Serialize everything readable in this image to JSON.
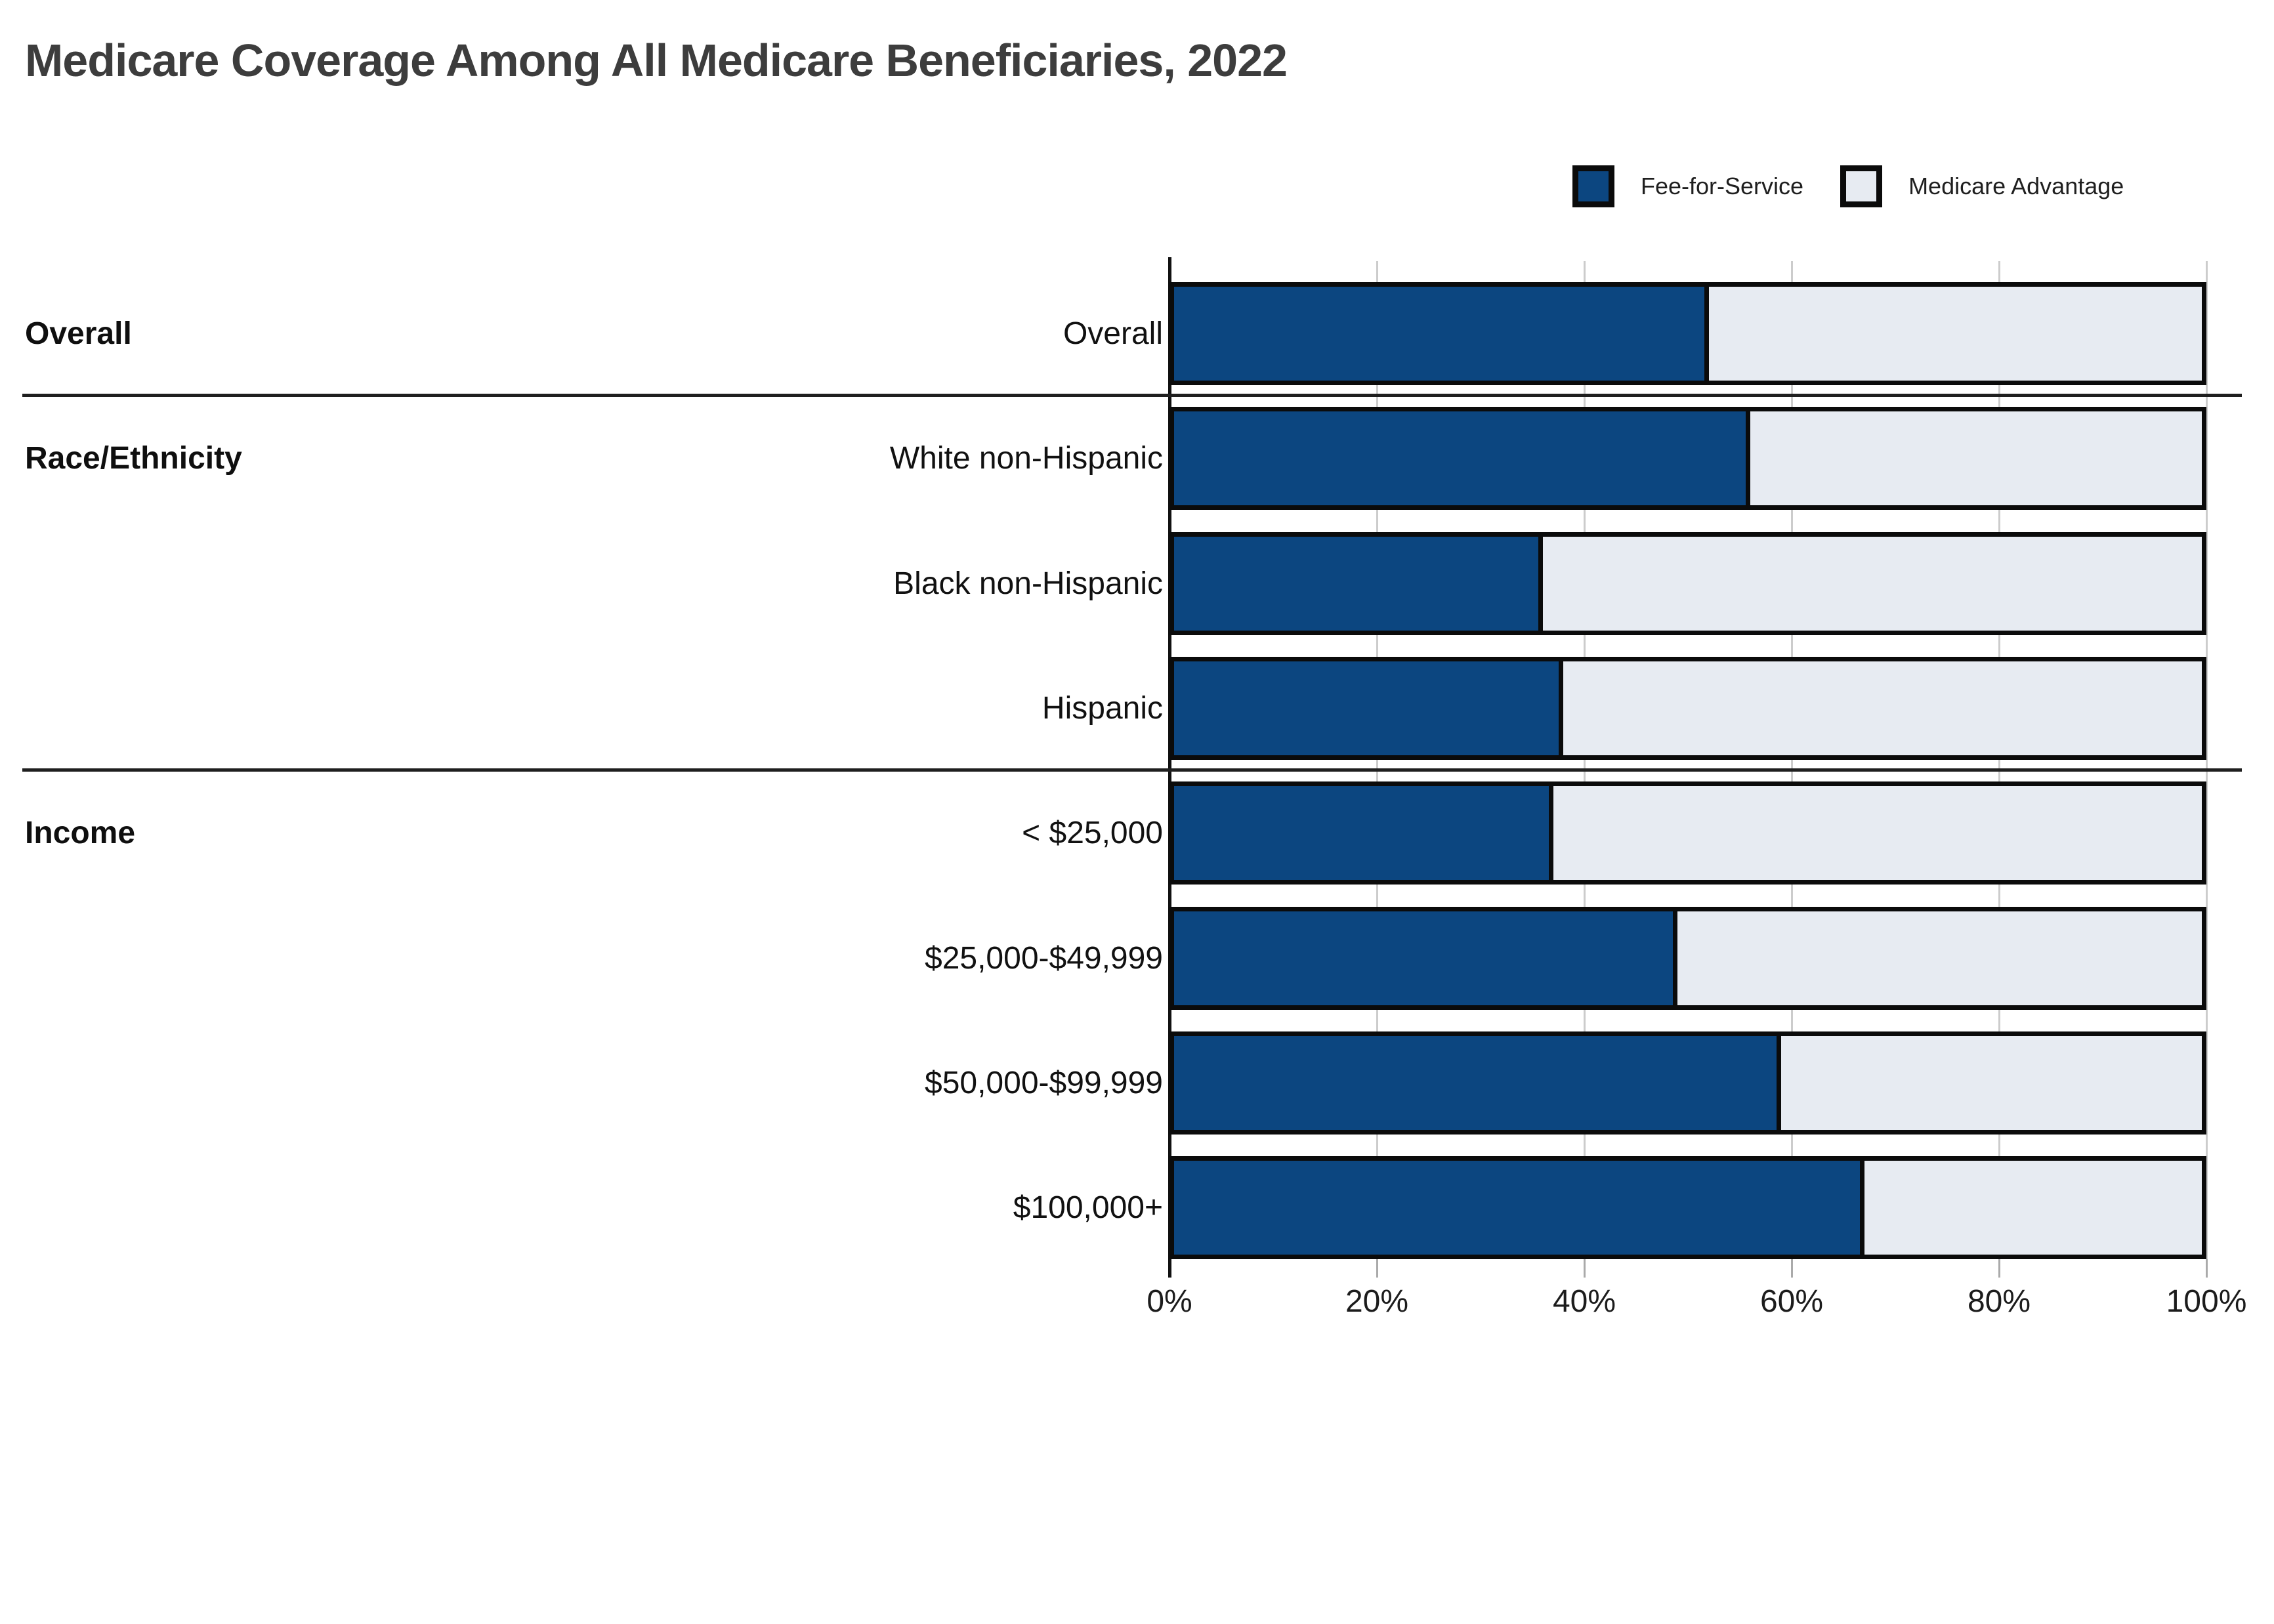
{
  "title": "Medicare Coverage Among All Medicare Beneficiaries, 2022",
  "legend": {
    "items": [
      {
        "label": "Fee-for-Service",
        "color": "#0c4680"
      },
      {
        "label": "Medicare Advantage",
        "color": "#e7ebf2"
      }
    ]
  },
  "axis": {
    "ticks": [
      "0%",
      "20%",
      "40%",
      "60%",
      "80%",
      "100%"
    ],
    "values": [
      0,
      20,
      40,
      60,
      80,
      100
    ]
  },
  "groups": [
    {
      "header": "Overall",
      "row_indices": [
        0
      ]
    },
    {
      "header": "Race/Ethnicity",
      "row_indices": [
        1,
        2,
        3
      ]
    },
    {
      "header": "Income",
      "row_indices": [
        4,
        5,
        6,
        7
      ]
    }
  ],
  "chart_data": {
    "type": "bar",
    "orientation": "horizontal",
    "stacked": true,
    "title": "Medicare Coverage Among All Medicare Beneficiaries, 2022",
    "categories": [
      "Overall",
      "White non-Hispanic",
      "Black non-Hispanic",
      "Hispanic",
      "< $25,000",
      "$25,000-$49,999",
      "$50,000-$99,999",
      "$100,000+"
    ],
    "category_groups": [
      {
        "label": "Overall",
        "categories": [
          "Overall"
        ]
      },
      {
        "label": "Race/Ethnicity",
        "categories": [
          "White non-Hispanic",
          "Black non-Hispanic",
          "Hispanic"
        ]
      },
      {
        "label": "Income",
        "categories": [
          "< $25,000",
          "$25,000-$49,999",
          "$50,000-$99,999",
          "$100,000+"
        ]
      }
    ],
    "series": [
      {
        "name": "Fee-for-Service",
        "color": "#0c4680",
        "values": [
          52,
          56,
          36,
          38,
          37,
          49,
          59,
          67
        ]
      },
      {
        "name": "Medicare Advantage",
        "color": "#e7ebf2",
        "values": [
          48,
          44,
          64,
          62,
          63,
          51,
          41,
          33
        ]
      }
    ],
    "xlim": [
      0,
      100
    ],
    "x_tick_labels": [
      "0%",
      "20%",
      "40%",
      "60%",
      "80%",
      "100%"
    ],
    "xlabel": "",
    "ylabel": "",
    "unit": "%",
    "legend_position": "top-right",
    "grid": true
  },
  "colors": {
    "fee_for_service": "#0c4680",
    "medicare_advantage": "#e7ebf2",
    "bar_border": "#0b0b0b",
    "gridline": "#cccccc",
    "axis": "#111111",
    "separator": "#1f1f1f",
    "title_text": "#3d3d3d",
    "label_text": "#111111",
    "background": "#ffffff"
  }
}
